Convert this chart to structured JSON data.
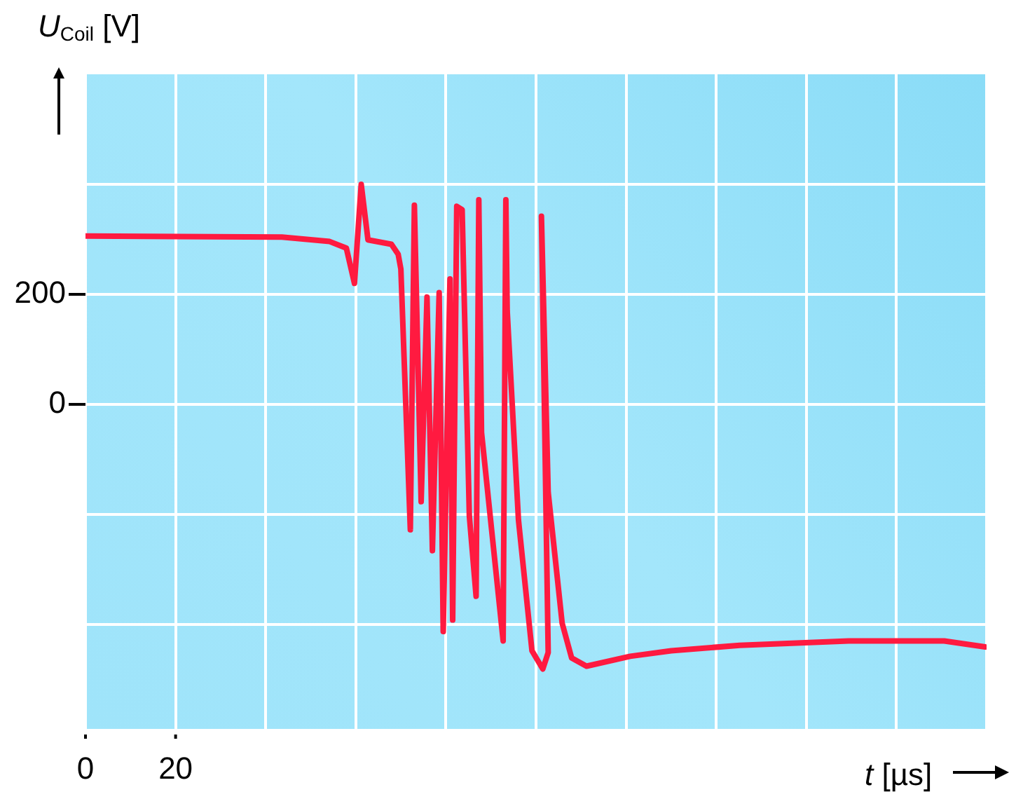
{
  "chart_data": {
    "type": "line",
    "xlabel": "t [µs]",
    "ylabel": "U$_{Coil}$ [V]",
    "x": [
      0,
      43.6,
      54.2,
      57.9,
      59.7,
      61.2,
      62.7,
      67.9,
      69.4,
      70,
      72.1,
      73,
      74.5,
      75.8,
      77,
      78.5,
      79.4,
      80.9,
      81.5,
      82.4,
      83.6,
      85.2,
      86.7,
      87.3,
      87.9,
      92.7,
      93.3,
      93.6,
      96.1,
      99.1,
      101.5,
      102.7,
      101.2,
      102.7,
      105.8,
      107.9,
      111.2,
      120.9,
      130,
      145.2,
      169.4,
      190.6,
      199.7
    ],
    "series": [
      {
        "color": "#ff1a40",
        "values": [
          306,
          304,
          296,
          284,
          220,
          400,
          299,
          291,
          273,
          246,
          -228,
          362,
          -177,
          195,
          -266,
          203,
          -413,
          228,
          -392,
          360,
          354,
          -203,
          -349,
          372,
          -51,
          -430,
          372,
          170,
          -210,
          -448,
          -481,
          -451,
          342,
          -160,
          -398,
          -461,
          -476,
          -458,
          -448,
          -438,
          -430,
          -430,
          -441
        ]
      }
    ],
    "xlim": [
      0,
      200
    ],
    "ylim": [
      -590,
      600
    ],
    "xticks": [
      0,
      20,
      {
        "value": 40,
        "label": null
      },
      {
        "value": 60,
        "label": null
      },
      {
        "value": 80,
        "label": null
      },
      {
        "value": 100,
        "label": null
      },
      {
        "value": 120,
        "label": null
      },
      {
        "value": 140,
        "label": null
      },
      {
        "value": 160,
        "label": null
      },
      {
        "value": 180,
        "label": null
      },
      {
        "value": 200,
        "label": null
      }
    ],
    "yticks": [
      {
        "value": -400,
        "label": null
      },
      {
        "value": -200,
        "label": null
      },
      0,
      200,
      {
        "value": 400,
        "label": null
      }
    ],
    "grid": true,
    "line_style": "solid"
  }
}
